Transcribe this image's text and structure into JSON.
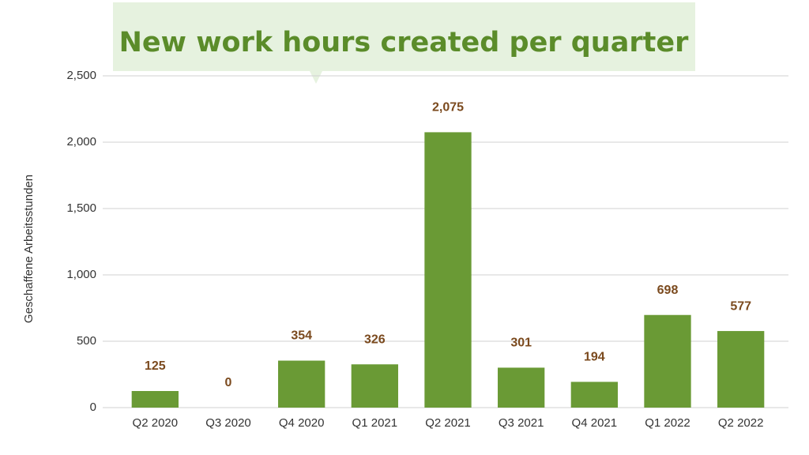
{
  "chart_data": {
    "type": "bar",
    "title": "New work hours created per quarter",
    "y_label": "Geschaffene Arbeitsstunden",
    "categories": [
      "Q2 2020",
      "Q3 2020",
      "Q4 2020",
      "Q1 2021",
      "Q2 2021",
      "Q3 2021",
      "Q4 2021",
      "Q1 2022",
      "Q2 2022"
    ],
    "values": [
      125,
      0,
      354,
      326,
      2075,
      301,
      194,
      698,
      577
    ],
    "value_labels": [
      "125",
      "0",
      "354",
      "326",
      "2,075",
      "301",
      "194",
      "698",
      "577"
    ],
    "color": "#6a9a35",
    "ylim": [
      0,
      2500
    ],
    "yticks": [
      0,
      500,
      {
        "value": 1000,
        "label": "1,000"
      },
      {
        "value": 1500,
        "label": "1,500"
      },
      {
        "value": 2000,
        "label": "2,000"
      },
      {
        "value": 2500,
        "label": "2,500"
      }
    ],
    "grid": true
  }
}
